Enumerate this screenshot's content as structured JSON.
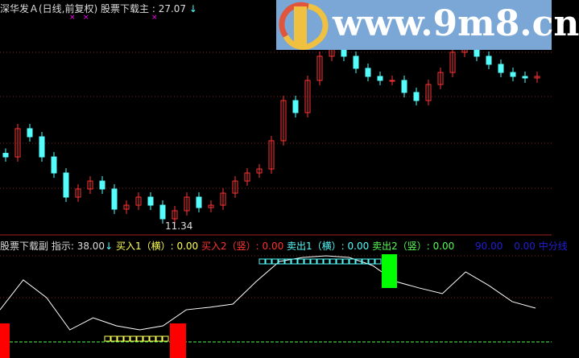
{
  "main_header": {
    "title": "深华发Ａ(日线,前复权)",
    "indicator": "股票下载主",
    "value": ": 27.07",
    "arrow": "↓"
  },
  "low_label": "11.34",
  "sub_header": {
    "indicator": "股票下载副",
    "prefix": "指示: 38.00",
    "arrow": "↓",
    "buy1": "买入1（横）: 0.00",
    "buy2": "买入2（竖）: 0.00",
    "sell1": "卖出1（横）: 0.00",
    "sell2": "卖出2（竖）: 0.00",
    "v90": "90.00",
    "v0": "0.00",
    "mid": "中分线"
  },
  "watermark": {
    "text": "www.9m8.cn"
  },
  "colors": {
    "up": "#ff3232",
    "down": "#54fcfc",
    "buy1": "#ffff54",
    "buy2": "#ff3232",
    "sell1": "#54fcfc",
    "sell2": "#54fc54",
    "line": "#ffffff",
    "blue": "#0000cc"
  },
  "chart_data": {
    "type": "candlestick",
    "closes": [
      16.47,
      18.81,
      18.14,
      16.47,
      15.14,
      13.14,
      13.81,
      14.47,
      13.81,
      12.14,
      12.47,
      13.14,
      12.47,
      11.34,
      12.01,
      13.14,
      12.27,
      12.47,
      13.47,
      14.47,
      15.14,
      15.47,
      17.81,
      21.14,
      20.14,
      22.81,
      24.81,
      25.47,
      24.81,
      23.81,
      23.14,
      22.81,
      22.81,
      21.81,
      21.14,
      22.47,
      23.47,
      25.14,
      25.47,
      24.81,
      24.14,
      23.47,
      23.14,
      23.01,
      23.14
    ],
    "indicator": [
      33.6,
      64.8,
      46.3,
      12.6,
      25.2,
      16.8,
      12.6,
      16.8,
      33.6,
      36.2,
      39.5,
      63.1,
      84.1,
      88.3,
      90,
      88.3,
      79.9,
      63.1,
      56.4,
      50.5,
      73.2,
      58.9,
      42.1,
      35.3
    ]
  }
}
